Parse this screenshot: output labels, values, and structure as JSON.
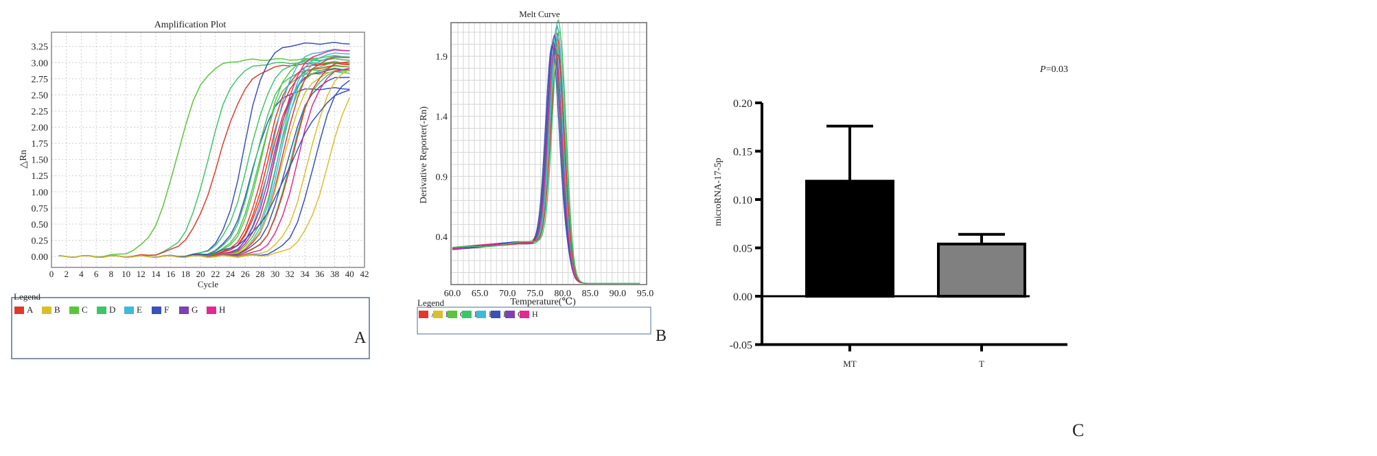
{
  "panel_labels": {
    "a": "A",
    "b": "B",
    "c": "C"
  },
  "colors": {
    "A": "#e0392b",
    "B": "#d6c02c",
    "C": "#5cc43a",
    "D": "#3ec46a",
    "E": "#3fb9da",
    "F": "#3a50ba",
    "G": "#7a42b2",
    "H": "#e02a92"
  },
  "chart_data": [
    {
      "type": "line",
      "title": "Amplification Plot",
      "xlabel": "Cycle",
      "ylabel": "△Rn",
      "xlim": [
        0,
        42
      ],
      "ylim": [
        -0.17,
        3.47
      ],
      "xticks": [
        "0",
        "2",
        "4",
        "6",
        "8",
        "10",
        "12",
        "14",
        "16",
        "18",
        "20",
        "22",
        "24",
        "26",
        "28",
        "30",
        "32",
        "34",
        "36",
        "38",
        "40",
        "42"
      ],
      "yticks": [
        "0.00",
        "0.25",
        "0.50",
        "0.75",
        "1.00",
        "1.25",
        "1.50",
        "1.75",
        "2.00",
        "2.25",
        "2.50",
        "2.75",
        "3.00",
        "3.25"
      ],
      "grid": true,
      "legend_title": "Legend",
      "legend": [
        "A",
        "B",
        "C",
        "D",
        "E",
        "F",
        "G",
        "H"
      ],
      "cycles": [
        1,
        40
      ],
      "curves": [
        {
          "well": "C",
          "midpoint": 16.8,
          "plateau": 3.05,
          "slope": 1.7
        },
        {
          "well": "D",
          "midpoint": 21.0,
          "plateau": 3.0,
          "slope": 1.6
        },
        {
          "well": "A",
          "midpoint": 22.4,
          "plateau": 2.98,
          "slope": 1.9
        },
        {
          "well": "F",
          "midpoint": 25.8,
          "plateau": 3.3,
          "slope": 1.4
        },
        {
          "well": "D",
          "midpoint": 26.5,
          "plateau": 3.05,
          "slope": 1.6
        },
        {
          "well": "F",
          "midpoint": 26.9,
          "plateau": 2.6,
          "slope": 1.5
        },
        {
          "well": "D",
          "midpoint": 27.3,
          "plateau": 2.9,
          "slope": 1.5
        },
        {
          "well": "D",
          "midpoint": 27.8,
          "plateau": 2.85,
          "slope": 1.5
        },
        {
          "well": "C",
          "midpoint": 28.2,
          "plateau": 3.1,
          "slope": 1.5
        },
        {
          "well": "A",
          "midpoint": 28.7,
          "plateau": 3.0,
          "slope": 1.5
        },
        {
          "well": "A",
          "midpoint": 29.0,
          "plateau": 2.95,
          "slope": 1.5
        },
        {
          "well": "A",
          "midpoint": 29.3,
          "plateau": 2.9,
          "slope": 1.6
        },
        {
          "well": "E",
          "midpoint": 29.5,
          "plateau": 3.2,
          "slope": 1.4
        },
        {
          "well": "G",
          "midpoint": 29.6,
          "plateau": 2.9,
          "slope": 1.5
        },
        {
          "well": "D",
          "midpoint": 30.0,
          "plateau": 3.0,
          "slope": 1.5
        },
        {
          "well": "C",
          "midpoint": 30.3,
          "plateau": 2.95,
          "slope": 1.5
        },
        {
          "well": "E",
          "midpoint": 30.5,
          "plateau": 3.15,
          "slope": 1.4
        },
        {
          "well": "E",
          "midpoint": 30.7,
          "plateau": 3.1,
          "slope": 1.4
        },
        {
          "well": "H",
          "midpoint": 30.1,
          "plateau": 3.2,
          "slope": 1.5
        },
        {
          "well": "A",
          "midpoint": 31.0,
          "plateau": 3.1,
          "slope": 1.5
        },
        {
          "well": "B",
          "midpoint": 31.0,
          "plateau": 2.9,
          "slope": 1.6
        },
        {
          "well": "F",
          "midpoint": 31.5,
          "plateau": 2.8,
          "slope": 1.6
        },
        {
          "well": "D",
          "midpoint": 32.0,
          "plateau": 2.9,
          "slope": 1.5
        },
        {
          "well": "A",
          "midpoint": 32.3,
          "plateau": 3.05,
          "slope": 1.6
        },
        {
          "well": "H",
          "midpoint": 33.0,
          "plateau": 2.95,
          "slope": 1.5
        },
        {
          "well": "B",
          "midpoint": 34.5,
          "plateau": 3.0,
          "slope": 1.6
        },
        {
          "well": "F",
          "midpoint": 35.2,
          "plateau": 2.85,
          "slope": 1.5
        },
        {
          "well": "F",
          "midpoint": 31.8,
          "plateau": 2.7,
          "slope": 2.6
        },
        {
          "well": "B",
          "midpoint": 37.2,
          "plateau": 2.95,
          "slope": 1.7
        }
      ]
    },
    {
      "type": "line",
      "title": "Melt Curve",
      "xlabel": "Temperature(℃)",
      "ylabel": "Derivative Reporter(-Rn)",
      "xlim": [
        60,
        95
      ],
      "ylim": [
        0,
        2.18
      ],
      "xticks": [
        "60.0",
        "65.0",
        "70.0",
        "75.0",
        "80.0",
        "85.0",
        "90.0",
        "95.0"
      ],
      "yticks": [
        "0.4",
        "0.9",
        "1.4",
        "1.9"
      ],
      "grid": true,
      "legend_title": "Legend",
      "legend": [
        "A",
        "B",
        "C",
        "D",
        "E",
        "F",
        "G",
        "H"
      ],
      "temperature_range": [
        60,
        94
      ],
      "curves": [
        {
          "well": "A",
          "peak_temp": 78.6,
          "peak": 1.95
        },
        {
          "well": "A",
          "peak_temp": 78.9,
          "peak": 2.05
        },
        {
          "well": "B",
          "peak_temp": 78.2,
          "peak": 1.85
        },
        {
          "well": "B",
          "peak_temp": 78.5,
          "peak": 1.9
        },
        {
          "well": "C",
          "peak_temp": 78.4,
          "peak": 2.0
        },
        {
          "well": "C",
          "peak_temp": 79.0,
          "peak": 2.1
        },
        {
          "well": "D",
          "peak_temp": 79.2,
          "peak": 2.15
        },
        {
          "well": "D",
          "peak_temp": 78.8,
          "peak": 2.0
        },
        {
          "well": "E",
          "peak_temp": 79.0,
          "peak": 2.12
        },
        {
          "well": "E",
          "peak_temp": 78.7,
          "peak": 2.05
        },
        {
          "well": "F",
          "peak_temp": 78.3,
          "peak": 1.98
        },
        {
          "well": "F",
          "peak_temp": 78.1,
          "peak": 1.95
        },
        {
          "well": "G",
          "peak_temp": 78.5,
          "peak": 2.02
        },
        {
          "well": "H",
          "peak_temp": 78.6,
          "peak": 1.92
        },
        {
          "well": "A",
          "peak_temp": 79.1,
          "peak": 1.88
        },
        {
          "well": "D",
          "peak_temp": 79.4,
          "peak": 2.08
        }
      ]
    },
    {
      "type": "bar",
      "title": "P=0.03",
      "title_italic": "P",
      "title_rest": "=0.03",
      "xlabel": "",
      "ylabel": "microRNA-17-5p",
      "categories": [
        "MT",
        "T"
      ],
      "values": [
        0.119,
        0.054
      ],
      "error_upper": [
        0.176,
        0.064
      ],
      "bar_colors": [
        "#000000",
        "#808080"
      ],
      "ylim": [
        -0.05,
        0.2
      ],
      "yticks": [
        "0.20",
        "0.15",
        "0.10",
        "0.05",
        "0.00",
        "-0.05"
      ]
    }
  ]
}
